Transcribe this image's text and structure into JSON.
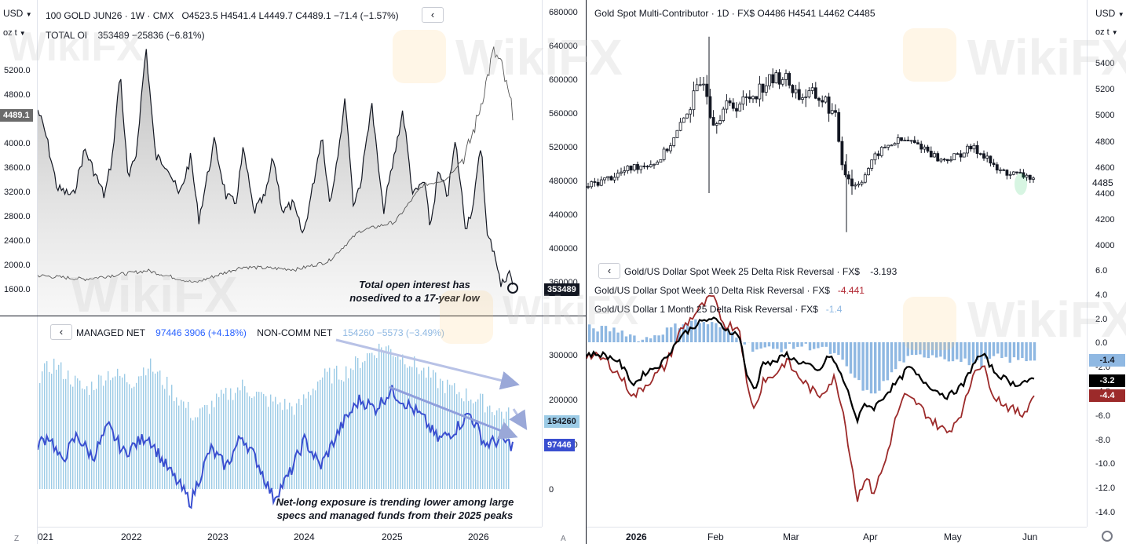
{
  "left_price_scale": {
    "currency": "USD",
    "unit": "oz t",
    "ticks": [
      "5200.0",
      "4800.0",
      "4400.0",
      "4000.0",
      "3600.0",
      "3200.0",
      "2800.0",
      "2400.0",
      "2000.0",
      "1600.0"
    ],
    "current_label": "4489.1",
    "bottom_letter": "Z"
  },
  "top_left_chart": {
    "header": {
      "symbol": "100 GOLD JUN26",
      "interval": "1W",
      "exchange": "CMX",
      "ohlc": "O4523.5  H4541.4  L4449.7  C4489.1  −71.4 (−1.57%)",
      "oi_label": "TOTAL OI",
      "oi_values": "353489  −25836 (−6.81%)"
    },
    "right_scale_ticks": [
      "680000",
      "640000",
      "600000",
      "560000",
      "520000",
      "480000",
      "440000",
      "400000",
      "360000"
    ],
    "oi_last_label": "353489",
    "annotation_line1": "Total open interest has",
    "annotation_line2": "nosedived to a 17-year low",
    "colors": {
      "price_line": "#555555",
      "oi_line": "#131722",
      "oi_fill": "#cfcfcf"
    }
  },
  "bottom_left_chart": {
    "managed_label": "MANAGED NET",
    "managed_values": "97446  3906 (+4.18%)",
    "noncomm_label": "NON-COMM NET",
    "noncomm_values": "154260  −5573 (−3.49%)",
    "right_scale_ticks": [
      "300000",
      "200000",
      "100000",
      "0"
    ],
    "noncomm_last_label": "154260",
    "managed_last_label": "97446",
    "annotation_line1": "Net-long exposure is trending lower among large",
    "annotation_line2": "specs and managed funds from their 2025 peaks",
    "time_axis": [
      "021",
      "2022",
      "2023",
      "2024",
      "2025",
      "2026"
    ],
    "axis_letter": "A",
    "colors": {
      "managed": "#3a4fd0",
      "noncomm_bars": "#9ccbe6"
    }
  },
  "top_right_chart": {
    "header": "Gold Spot Multi-Contributor · 1D · FX$   O4486  H4541  L4462  C4485",
    "currency": "USD",
    "unit": "oz t",
    "right_scale_ticks": [
      "5400",
      "5200",
      "5000",
      "4800",
      "4600",
      "4400",
      "4200",
      "4000"
    ],
    "last_label": "4485"
  },
  "bottom_right_chart": {
    "series_labels": [
      {
        "name": "Gold/US Dollar Spot Week 25 Delta Risk Reversal · FX$",
        "value": "-3.193"
      },
      {
        "name": "Gold/US Dollar Spot Week 10 Delta Risk Reversal · FX$",
        "value": "-4.441"
      },
      {
        "name": "Gold/US Dollar 1 Month 25 Delta Risk Reversal · FX$",
        "value": "-1.4"
      }
    ],
    "right_scale_ticks": [
      "6.0",
      "4.0",
      "2.0",
      "0.0",
      "-2.0",
      "-4.0",
      "-6.0",
      "-8.0",
      "-10.0",
      "-12.0",
      "-14.0"
    ],
    "last_labels": {
      "one_month": "-1.4",
      "week25": "-3.2",
      "week10": "-4.4"
    },
    "time_axis": [
      "2026",
      "Feb",
      "Mar",
      "Apr",
      "May",
      "Jun"
    ],
    "colors": {
      "week25": "#000000",
      "week10": "#9c2a2a",
      "one_month": "#8fb8e2"
    }
  },
  "watermark": "WikiFX",
  "chart_data": [
    {
      "type": "line",
      "title": "100 GOLD JUN26 · 1W · CMX with TOTAL OI",
      "x": [
        "2021",
        "2022",
        "2023",
        "2024",
        "2025",
        "2026"
      ],
      "series": [
        {
          "name": "TOTAL OI",
          "values": [
            560000,
            620000,
            530000,
            510000,
            560000,
            353489
          ]
        },
        {
          "name": "100 GOLD JUN26",
          "values": [
            1800,
            1900,
            1750,
            2050,
            2700,
            4489.1
          ]
        }
      ],
      "ylim": [
        1600,
        5200
      ]
    },
    {
      "type": "bar",
      "title": "MANAGED NET / NON-COMM NET",
      "x": [
        "2021",
        "2022",
        "2023",
        "2024",
        "2025",
        "2026"
      ],
      "series": [
        {
          "name": "NON-COMM NET",
          "values": [
            260000,
            280000,
            200000,
            250000,
            300000,
            154260
          ]
        },
        {
          "name": "MANAGED NET",
          "values": [
            100000,
            130000,
            20000,
            120000,
            220000,
            97446
          ]
        }
      ],
      "ylim": [
        -60000,
        320000
      ]
    },
    {
      "type": "line",
      "title": "Gold Spot Multi-Contributor · 1D · FX$",
      "x": [
        "2026",
        "Feb",
        "Mar",
        "Apr",
        "May",
        "Jun"
      ],
      "series": [
        {
          "name": "Gold Spot",
          "values": [
            4450,
            5400,
            5100,
            4400,
            4700,
            4485
          ]
        }
      ],
      "ylim": [
        4000,
        5500
      ]
    },
    {
      "type": "line",
      "title": "Gold/US Dollar Delta Risk Reversals",
      "x": [
        "2026",
        "Feb",
        "Mar",
        "Apr",
        "May",
        "Jun"
      ],
      "series": [
        {
          "name": "Gold/US Dollar Spot Week 25 Delta Risk Reversal",
          "values": [
            0.0,
            1.2,
            -0.5,
            -6.5,
            -3.0,
            -3.193
          ]
        },
        {
          "name": "Gold/US Dollar Spot Week 10 Delta Risk Reversal",
          "values": [
            -0.5,
            1.5,
            -1.2,
            -12.0,
            -5.5,
            -4.441
          ]
        },
        {
          "name": "Gold/US Dollar 1 Month 25 Delta Risk Reversal",
          "values": [
            1.0,
            1.5,
            -0.3,
            -4.0,
            -1.5,
            -1.4
          ]
        }
      ],
      "ylim": [
        -14.5,
        6.5
      ]
    }
  ]
}
